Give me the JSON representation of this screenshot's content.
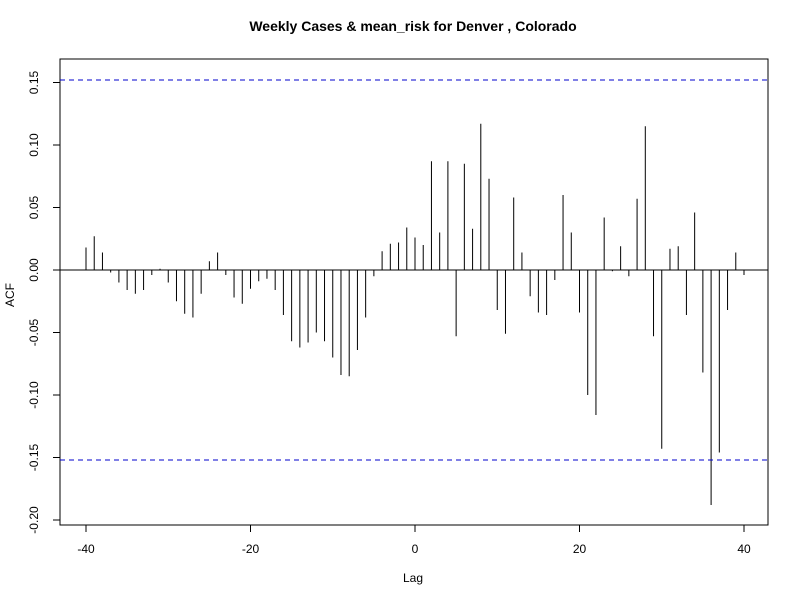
{
  "chart_data": {
    "type": "bar",
    "title": "Weekly Cases & mean_risk for Denver , Colorado",
    "xlabel": "Lag",
    "ylabel": "ACF",
    "xlim": [
      -40,
      40
    ],
    "ylim": [
      -0.2,
      0.15
    ],
    "x_ticks": [
      -40,
      -20,
      0,
      20,
      40
    ],
    "x_tick_labels": [
      "-40",
      "-20",
      "0",
      "20",
      "40"
    ],
    "y_ticks": [
      -0.2,
      -0.15,
      -0.1,
      -0.05,
      0.0,
      0.05,
      0.1,
      0.15
    ],
    "y_tick_labels": [
      "-0.20",
      "-0.15",
      "-0.10",
      "-0.05",
      "0.00",
      "0.05",
      "0.10",
      "0.15"
    ],
    "confidence_limits": [
      0.152,
      -0.152
    ],
    "grid": false,
    "colors": {
      "bars": "#000000",
      "confidence": "#0000cc",
      "zero_line": "#000000",
      "frame": "#000000"
    },
    "x": [
      -40,
      -39,
      -38,
      -37,
      -36,
      -35,
      -34,
      -33,
      -32,
      -31,
      -30,
      -29,
      -28,
      -27,
      -26,
      -25,
      -24,
      -23,
      -22,
      -21,
      -20,
      -19,
      -18,
      -17,
      -16,
      -15,
      -14,
      -13,
      -12,
      -11,
      -10,
      -9,
      -8,
      -7,
      -6,
      -5,
      -4,
      -3,
      -2,
      -1,
      0,
      1,
      2,
      3,
      4,
      5,
      6,
      7,
      8,
      9,
      10,
      11,
      12,
      13,
      14,
      15,
      16,
      17,
      18,
      19,
      20,
      21,
      22,
      23,
      24,
      25,
      26,
      27,
      28,
      29,
      30,
      31,
      32,
      33,
      34,
      35,
      36,
      37,
      38,
      39,
      40
    ],
    "values": [
      0.018,
      0.027,
      0.014,
      -0.002,
      -0.01,
      -0.016,
      -0.019,
      -0.016,
      -0.004,
      0.001,
      -0.01,
      -0.025,
      -0.035,
      -0.038,
      -0.019,
      0.007,
      0.014,
      -0.004,
      -0.022,
      -0.027,
      -0.015,
      -0.009,
      -0.007,
      -0.016,
      -0.036,
      -0.057,
      -0.062,
      -0.058,
      -0.05,
      -0.057,
      -0.07,
      -0.084,
      -0.085,
      -0.064,
      -0.038,
      -0.005,
      0.015,
      0.021,
      0.022,
      0.034,
      0.026,
      0.02,
      0.087,
      0.03,
      0.087,
      -0.053,
      0.085,
      0.033,
      0.117,
      0.073,
      -0.032,
      -0.051,
      0.058,
      0.014,
      -0.021,
      -0.034,
      -0.036,
      -0.008,
      0.06,
      0.03,
      -0.034,
      -0.1,
      -0.116,
      0.042,
      -0.001,
      0.019,
      -0.005,
      0.057,
      0.115,
      -0.053,
      -0.143,
      0.017,
      0.019,
      -0.036,
      0.046,
      -0.082,
      -0.188,
      -0.146,
      -0.032,
      0.014,
      -0.004
    ]
  }
}
